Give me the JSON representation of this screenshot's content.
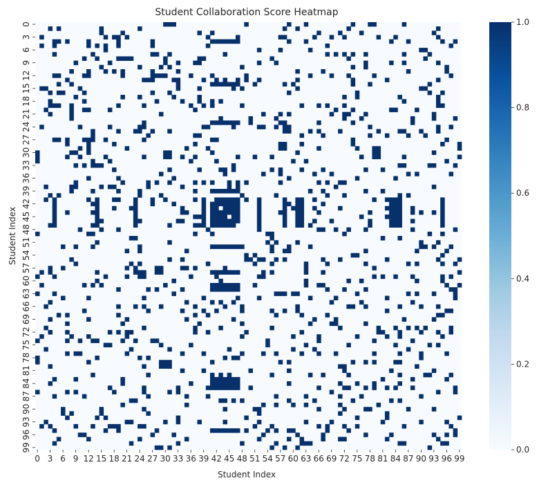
{
  "chart_data": {
    "type": "heatmap",
    "title": "Student Collaboration Score Heatmap",
    "xlabel": "Student Index",
    "ylabel": "Student Index",
    "n": 100,
    "tick_step": 3,
    "x_tick_labels": [
      "0",
      "3",
      "6",
      "9",
      "12",
      "15",
      "18",
      "21",
      "24",
      "27",
      "30",
      "33",
      "36",
      "39",
      "42",
      "45",
      "48",
      "51",
      "54",
      "57",
      "60",
      "63",
      "66",
      "69",
      "72",
      "75",
      "78",
      "81",
      "84",
      "87",
      "90",
      "93",
      "96",
      "99"
    ],
    "y_tick_labels": [
      "0",
      "3",
      "6",
      "9",
      "12",
      "15",
      "18",
      "21",
      "24",
      "27",
      "30",
      "33",
      "36",
      "39",
      "42",
      "45",
      "48",
      "51",
      "54",
      "57",
      "60",
      "63",
      "66",
      "69",
      "72",
      "75",
      "78",
      "81",
      "84",
      "87",
      "90",
      "93",
      "96",
      "99"
    ],
    "value_range": [
      0.0,
      1.0
    ],
    "colormap": "Blues",
    "colorbar_ticks": [
      "0.0",
      "0.2",
      "0.4",
      "0.6",
      "0.8",
      "1.0"
    ],
    "density": 0.1,
    "highlighted_cells": [
      [
        0,
        30
      ],
      [
        0,
        31
      ],
      [
        0,
        32
      ],
      [
        0,
        78
      ],
      [
        0,
        79
      ],
      [
        3,
        18
      ],
      [
        3,
        19
      ],
      [
        30,
        30
      ],
      [
        30,
        31
      ],
      [
        31,
        30
      ],
      [
        31,
        31
      ],
      [
        57,
        28
      ],
      [
        57,
        29
      ],
      [
        58,
        28
      ],
      [
        58,
        29
      ],
      [
        24,
        58
      ],
      [
        24,
        59
      ],
      [
        25,
        58
      ],
      [
        25,
        59
      ],
      [
        79,
        30
      ],
      [
        79,
        31
      ],
      [
        80,
        30
      ],
      [
        80,
        31
      ],
      [
        29,
        79
      ],
      [
        29,
        80
      ],
      [
        30,
        79
      ],
      [
        30,
        80
      ]
    ],
    "band_rows": [
      4,
      14,
      23,
      39,
      52,
      58,
      61,
      62,
      83,
      84,
      85,
      95
    ],
    "band_cols": [
      41,
      42,
      43,
      44,
      45,
      46,
      47
    ],
    "block": {
      "rows": [
        41,
        42,
        43,
        44,
        45,
        46,
        47
      ],
      "cols": [
        41,
        42,
        43,
        44,
        45,
        46,
        47
      ]
    }
  },
  "colors": {
    "low": "#f7fbff",
    "high": "#08306b",
    "stops": [
      "#f7fbff",
      "#deebf7",
      "#c6dbef",
      "#9ecae1",
      "#6baed6",
      "#4292c6",
      "#2171b5",
      "#08519c",
      "#08306b"
    ]
  }
}
